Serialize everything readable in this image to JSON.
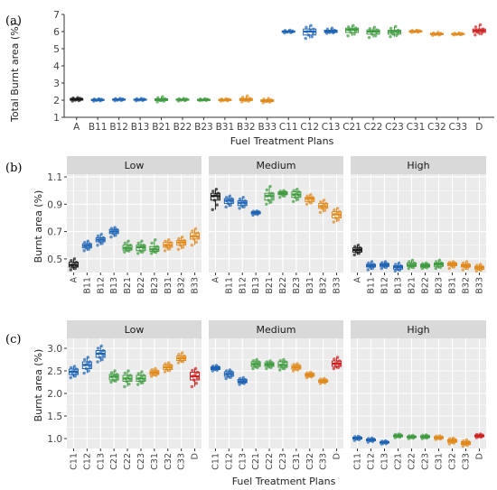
{
  "colors": {
    "A": "#1a1a1a",
    "B1": "#1f64b4",
    "B2": "#3f9a3f",
    "B3": "#e08a1e",
    "C1": "#1f64b4",
    "C2": "#3f9a3f",
    "C3": "#e08a1e",
    "D": "#cc2222",
    "panel_bg": "#ebebeb",
    "strip_bg": "#d9d9d9",
    "grid": "#ffffff"
  },
  "figure": {
    "x_axis_title": "Fuel Treatment Plans",
    "panel_labels": [
      "(a)",
      "(b)",
      "(c)"
    ]
  },
  "chart_data": [
    {
      "id": "a",
      "type": "boxplot",
      "ylabel": "Total Burnt area (%)",
      "xlabel": "Fuel Treatment Plans",
      "ylim": [
        1,
        7
      ],
      "yticks": [
        1,
        2,
        3,
        4,
        5,
        6,
        7
      ],
      "grid": false,
      "categories": [
        "A",
        "B11",
        "B12",
        "B13",
        "B21",
        "B22",
        "B23",
        "B31",
        "B32",
        "B33",
        "C11",
        "C12",
        "C13",
        "C21",
        "C22",
        "C23",
        "C31",
        "C32",
        "C33",
        "D"
      ],
      "groups": [
        "A",
        "B1",
        "B1",
        "B1",
        "B2",
        "B2",
        "B2",
        "B3",
        "B3",
        "B3",
        "C1",
        "C1",
        "C1",
        "C2",
        "C2",
        "C2",
        "C3",
        "C3",
        "C3",
        "D"
      ],
      "stats": [
        {
          "min": 1.95,
          "q1": 2.0,
          "median": 2.05,
          "q3": 2.1,
          "max": 2.15
        },
        {
          "min": 1.95,
          "q1": 1.98,
          "median": 2.02,
          "q3": 2.05,
          "max": 2.08
        },
        {
          "min": 1.97,
          "q1": 2.0,
          "median": 2.03,
          "q3": 2.07,
          "max": 2.1
        },
        {
          "min": 1.97,
          "q1": 2.0,
          "median": 2.03,
          "q3": 2.06,
          "max": 2.1
        },
        {
          "min": 1.9,
          "q1": 1.98,
          "median": 2.03,
          "q3": 2.08,
          "max": 2.2
        },
        {
          "min": 1.95,
          "q1": 2.0,
          "median": 2.03,
          "q3": 2.06,
          "max": 2.1
        },
        {
          "min": 1.98,
          "q1": 2.0,
          "median": 2.02,
          "q3": 2.05,
          "max": 2.08
        },
        {
          "min": 1.95,
          "q1": 1.98,
          "median": 2.02,
          "q3": 2.05,
          "max": 2.08
        },
        {
          "min": 1.9,
          "q1": 1.98,
          "median": 2.03,
          "q3": 2.1,
          "max": 2.25
        },
        {
          "min": 1.85,
          "q1": 1.92,
          "median": 1.97,
          "q3": 2.02,
          "max": 2.1
        },
        {
          "min": 5.92,
          "q1": 5.96,
          "median": 6.0,
          "q3": 6.04,
          "max": 6.08
        },
        {
          "min": 5.6,
          "q1": 5.8,
          "median": 6.0,
          "q3": 6.15,
          "max": 6.35
        },
        {
          "min": 5.9,
          "q1": 5.95,
          "median": 6.02,
          "q3": 6.08,
          "max": 6.2
        },
        {
          "min": 5.75,
          "q1": 5.95,
          "median": 6.1,
          "q3": 6.2,
          "max": 6.35
        },
        {
          "min": 5.65,
          "q1": 5.85,
          "median": 6.0,
          "q3": 6.1,
          "max": 6.25
        },
        {
          "min": 5.7,
          "q1": 5.85,
          "median": 5.98,
          "q3": 6.08,
          "max": 6.3
        },
        {
          "min": 5.95,
          "q1": 5.98,
          "median": 6.02,
          "q3": 6.05,
          "max": 6.08
        },
        {
          "min": 5.78,
          "q1": 5.82,
          "median": 5.86,
          "q3": 5.9,
          "max": 5.95
        },
        {
          "min": 5.8,
          "q1": 5.83,
          "median": 5.86,
          "q3": 5.89,
          "max": 5.92
        },
        {
          "min": 5.8,
          "q1": 5.95,
          "median": 6.05,
          "q3": 6.15,
          "max": 6.4
        }
      ]
    },
    {
      "id": "b",
      "type": "boxplot",
      "ylabel": "Burnt area (%)",
      "xlabel": "",
      "ylim": [
        0.4,
        1.12
      ],
      "yticks": [
        0.5,
        0.7,
        0.9,
        1.1
      ],
      "grid": true,
      "facets": [
        {
          "name": "Low",
          "categories": [
            "A",
            "B11",
            "B12",
            "B13",
            "B21",
            "B22",
            "B23",
            "B31",
            "B32",
            "B33"
          ],
          "groups": [
            "A",
            "B1",
            "B1",
            "B1",
            "B2",
            "B2",
            "B2",
            "B3",
            "B3",
            "B3"
          ],
          "stats": [
            {
              "min": 0.42,
              "q1": 0.44,
              "median": 0.455,
              "q3": 0.475,
              "max": 0.5
            },
            {
              "min": 0.56,
              "q1": 0.58,
              "median": 0.595,
              "q3": 0.61,
              "max": 0.63
            },
            {
              "min": 0.6,
              "q1": 0.625,
              "median": 0.64,
              "q3": 0.655,
              "max": 0.68
            },
            {
              "min": 0.66,
              "q1": 0.685,
              "median": 0.7,
              "q3": 0.715,
              "max": 0.73
            },
            {
              "min": 0.55,
              "q1": 0.565,
              "median": 0.58,
              "q3": 0.6,
              "max": 0.63
            },
            {
              "min": 0.54,
              "q1": 0.56,
              "median": 0.585,
              "q3": 0.6,
              "max": 0.63
            },
            {
              "min": 0.54,
              "q1": 0.555,
              "median": 0.57,
              "q3": 0.59,
              "max": 0.64
            },
            {
              "min": 0.56,
              "q1": 0.585,
              "median": 0.6,
              "q3": 0.62,
              "max": 0.64
            },
            {
              "min": 0.57,
              "q1": 0.6,
              "median": 0.62,
              "q3": 0.635,
              "max": 0.66
            },
            {
              "min": 0.6,
              "q1": 0.645,
              "median": 0.665,
              "q3": 0.69,
              "max": 0.72
            }
          ]
        },
        {
          "name": "Medium",
          "categories": [
            "A",
            "B11",
            "B12",
            "B13",
            "B21",
            "B22",
            "B23",
            "B31",
            "B32",
            "B33"
          ],
          "groups": [
            "A",
            "B1",
            "B1",
            "B1",
            "B2",
            "B2",
            "B2",
            "B3",
            "B3",
            "B3"
          ],
          "stats": [
            {
              "min": 0.86,
              "q1": 0.93,
              "median": 0.96,
              "q3": 0.98,
              "max": 1.01
            },
            {
              "min": 0.88,
              "q1": 0.905,
              "median": 0.925,
              "q3": 0.94,
              "max": 0.96
            },
            {
              "min": 0.87,
              "q1": 0.89,
              "median": 0.91,
              "q3": 0.925,
              "max": 0.95
            },
            {
              "min": 0.82,
              "q1": 0.83,
              "median": 0.84,
              "q3": 0.845,
              "max": 0.85
            },
            {
              "min": 0.9,
              "q1": 0.93,
              "median": 0.96,
              "q3": 0.98,
              "max": 1.03
            },
            {
              "min": 0.95,
              "q1": 0.97,
              "median": 0.98,
              "q3": 0.99,
              "max": 1.0
            },
            {
              "min": 0.92,
              "q1": 0.95,
              "median": 0.97,
              "q3": 0.99,
              "max": 1.01
            },
            {
              "min": 0.9,
              "q1": 0.92,
              "median": 0.94,
              "q3": 0.95,
              "max": 0.97
            },
            {
              "min": 0.84,
              "q1": 0.87,
              "median": 0.885,
              "q3": 0.905,
              "max": 0.93
            },
            {
              "min": 0.77,
              "q1": 0.8,
              "median": 0.825,
              "q3": 0.845,
              "max": 0.87
            }
          ]
        },
        {
          "name": "High",
          "categories": [
            "A",
            "B11",
            "B12",
            "B13",
            "B21",
            "B22",
            "B23",
            "B31",
            "B32",
            "B33"
          ],
          "groups": [
            "A",
            "B1",
            "B1",
            "B1",
            "B2",
            "B2",
            "B2",
            "B3",
            "B3",
            "B3"
          ],
          "stats": [
            {
              "min": 0.53,
              "q1": 0.55,
              "median": 0.565,
              "q3": 0.58,
              "max": 0.6
            },
            {
              "min": 0.42,
              "q1": 0.44,
              "median": 0.45,
              "q3": 0.46,
              "max": 0.48
            },
            {
              "min": 0.43,
              "q1": 0.445,
              "median": 0.455,
              "q3": 0.465,
              "max": 0.48
            },
            {
              "min": 0.41,
              "q1": 0.425,
              "median": 0.44,
              "q3": 0.45,
              "max": 0.47
            },
            {
              "min": 0.43,
              "q1": 0.445,
              "median": 0.455,
              "q3": 0.47,
              "max": 0.49
            },
            {
              "min": 0.43,
              "q1": 0.44,
              "median": 0.45,
              "q3": 0.46,
              "max": 0.47
            },
            {
              "min": 0.43,
              "q1": 0.445,
              "median": 0.46,
              "q3": 0.47,
              "max": 0.49
            },
            {
              "min": 0.43,
              "q1": 0.45,
              "median": 0.46,
              "q3": 0.47,
              "max": 0.48
            },
            {
              "min": 0.42,
              "q1": 0.44,
              "median": 0.45,
              "q3": 0.46,
              "max": 0.48
            },
            {
              "min": 0.41,
              "q1": 0.425,
              "median": 0.435,
              "q3": 0.445,
              "max": 0.46
            }
          ]
        }
      ]
    },
    {
      "id": "c",
      "type": "boxplot",
      "ylabel": "Burnt area (%)",
      "xlabel": "Fuel Treatment Plans",
      "ylim": [
        0.78,
        3.22
      ],
      "yticks": [
        1.0,
        1.5,
        2.0,
        2.5,
        3.0
      ],
      "grid": true,
      "facets": [
        {
          "name": "Low",
          "categories": [
            "C11",
            "C12",
            "C13",
            "C21",
            "C22",
            "C23",
            "C31",
            "C32",
            "C33",
            "D"
          ],
          "groups": [
            "C1",
            "C1",
            "C1",
            "C2",
            "C2",
            "C2",
            "C3",
            "C3",
            "C3",
            "D"
          ],
          "stats": [
            {
              "min": 2.35,
              "q1": 2.42,
              "median": 2.48,
              "q3": 2.54,
              "max": 2.6
            },
            {
              "min": 2.45,
              "q1": 2.55,
              "median": 2.63,
              "q3": 2.7,
              "max": 2.8
            },
            {
              "min": 2.7,
              "q1": 2.8,
              "median": 2.88,
              "q3": 2.95,
              "max": 3.05
            },
            {
              "min": 2.25,
              "q1": 2.3,
              "median": 2.37,
              "q3": 2.42,
              "max": 2.5
            },
            {
              "min": 2.15,
              "q1": 2.27,
              "median": 2.33,
              "q3": 2.4,
              "max": 2.5
            },
            {
              "min": 2.2,
              "q1": 2.27,
              "median": 2.33,
              "q3": 2.4,
              "max": 2.48
            },
            {
              "min": 2.38,
              "q1": 2.42,
              "median": 2.46,
              "q3": 2.5,
              "max": 2.55
            },
            {
              "min": 2.48,
              "q1": 2.53,
              "median": 2.58,
              "q3": 2.63,
              "max": 2.68
            },
            {
              "min": 2.68,
              "q1": 2.73,
              "median": 2.78,
              "q3": 2.83,
              "max": 2.9
            },
            {
              "min": 2.15,
              "q1": 2.3,
              "median": 2.38,
              "q3": 2.47,
              "max": 2.55
            }
          ]
        },
        {
          "name": "Medium",
          "categories": [
            "C11",
            "C12",
            "C13",
            "C21",
            "C22",
            "C23",
            "C31",
            "C32",
            "C33",
            "D"
          ],
          "groups": [
            "C1",
            "C1",
            "C1",
            "C2",
            "C2",
            "C2",
            "C3",
            "C3",
            "C3",
            "D"
          ],
          "stats": [
            {
              "min": 2.5,
              "q1": 2.53,
              "median": 2.56,
              "q3": 2.59,
              "max": 2.62
            },
            {
              "min": 2.33,
              "q1": 2.38,
              "median": 2.43,
              "q3": 2.48,
              "max": 2.52
            },
            {
              "min": 2.2,
              "q1": 2.24,
              "median": 2.27,
              "q3": 2.31,
              "max": 2.35
            },
            {
              "min": 2.55,
              "q1": 2.6,
              "median": 2.65,
              "q3": 2.7,
              "max": 2.75
            },
            {
              "min": 2.55,
              "q1": 2.6,
              "median": 2.64,
              "q3": 2.68,
              "max": 2.72
            },
            {
              "min": 2.52,
              "q1": 2.58,
              "median": 2.63,
              "q3": 2.7,
              "max": 2.75
            },
            {
              "min": 2.5,
              "q1": 2.54,
              "median": 2.58,
              "q3": 2.62,
              "max": 2.66
            },
            {
              "min": 2.35,
              "q1": 2.38,
              "median": 2.41,
              "q3": 2.44,
              "max": 2.47
            },
            {
              "min": 2.22,
              "q1": 2.25,
              "median": 2.28,
              "q3": 2.3,
              "max": 2.33
            },
            {
              "min": 2.55,
              "q1": 2.6,
              "median": 2.66,
              "q3": 2.72,
              "max": 2.8
            }
          ]
        },
        {
          "name": "High",
          "categories": [
            "C11",
            "C12",
            "C13",
            "C21",
            "C22",
            "C23",
            "C31",
            "C32",
            "C33",
            "D"
          ],
          "groups": [
            "C1",
            "C1",
            "C1",
            "C2",
            "C2",
            "C2",
            "C3",
            "C3",
            "C3",
            "D"
          ],
          "stats": [
            {
              "min": 0.96,
              "q1": 0.99,
              "median": 1.01,
              "q3": 1.03,
              "max": 1.05
            },
            {
              "min": 0.92,
              "q1": 0.95,
              "median": 0.97,
              "q3": 0.99,
              "max": 1.01
            },
            {
              "min": 0.88,
              "q1": 0.9,
              "median": 0.92,
              "q3": 0.93,
              "max": 0.95
            },
            {
              "min": 1.02,
              "q1": 1.04,
              "median": 1.06,
              "q3": 1.08,
              "max": 1.1
            },
            {
              "min": 1.0,
              "q1": 1.02,
              "median": 1.04,
              "q3": 1.05,
              "max": 1.07
            },
            {
              "min": 1.0,
              "q1": 1.02,
              "median": 1.04,
              "q3": 1.06,
              "max": 1.08
            },
            {
              "min": 0.98,
              "q1": 1.0,
              "median": 1.02,
              "q3": 1.04,
              "max": 1.06
            },
            {
              "min": 0.88,
              "q1": 0.92,
              "median": 0.95,
              "q3": 0.98,
              "max": 1.01
            },
            {
              "min": 0.83,
              "q1": 0.87,
              "median": 0.9,
              "q3": 0.93,
              "max": 0.97
            },
            {
              "min": 1.02,
              "q1": 1.04,
              "median": 1.06,
              "q3": 1.08,
              "max": 1.1
            }
          ]
        }
      ]
    }
  ]
}
